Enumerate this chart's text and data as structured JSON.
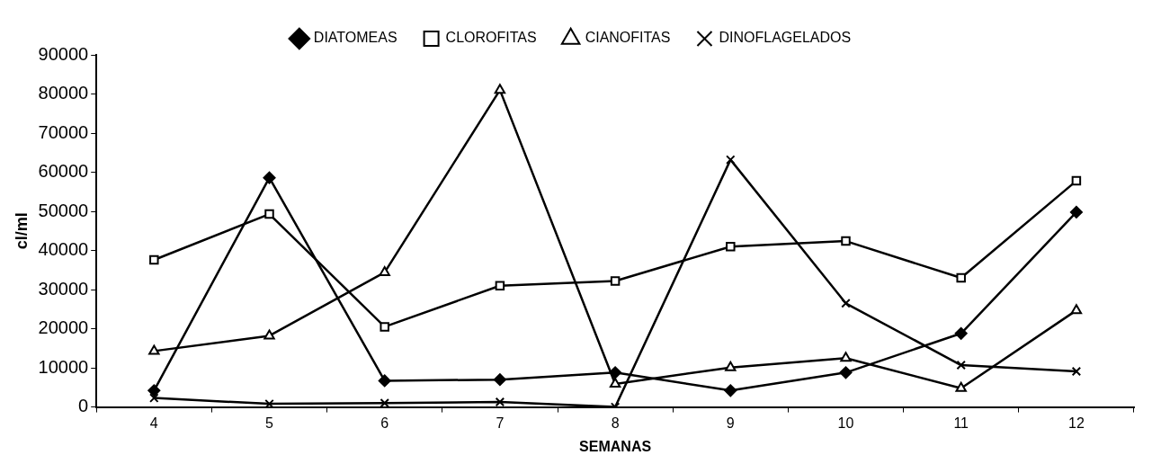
{
  "chart_data": {
    "type": "line",
    "xlabel": "SEMANAS",
    "ylabel": "cl/ml",
    "categories": [
      "4",
      "5",
      "6",
      "7",
      "8",
      "9",
      "10",
      "11",
      "12"
    ],
    "series": [
      {
        "name": "DIATOMEAS",
        "color": "#000000",
        "marker": "diamond",
        "values": [
          4200,
          58600,
          6700,
          7000,
          8800,
          4200,
          8800,
          18800,
          49800
        ]
      },
      {
        "name": "CLOROFITAS",
        "color": "#000000",
        "marker": "square",
        "values": [
          37600,
          49300,
          20500,
          31000,
          32200,
          41000,
          42400,
          33000,
          57800
        ]
      },
      {
        "name": "CIANOFITAS",
        "color": "#000000",
        "marker": "triangle",
        "values": [
          14300,
          18200,
          34400,
          81000,
          5900,
          10100,
          12500,
          4800,
          24700
        ]
      },
      {
        "name": "DINOFLAGELADOS",
        "color": "#000000",
        "marker": "cross",
        "values": [
          2300,
          800,
          1000,
          1300,
          0,
          63200,
          26500,
          10700,
          9100
        ]
      }
    ],
    "ylim": [
      0,
      90000
    ],
    "yticks": [
      0,
      10000,
      20000,
      30000,
      40000,
      50000,
      60000,
      70000,
      80000,
      90000
    ],
    "grid": false,
    "legend": "top",
    "line_style": "solid"
  }
}
